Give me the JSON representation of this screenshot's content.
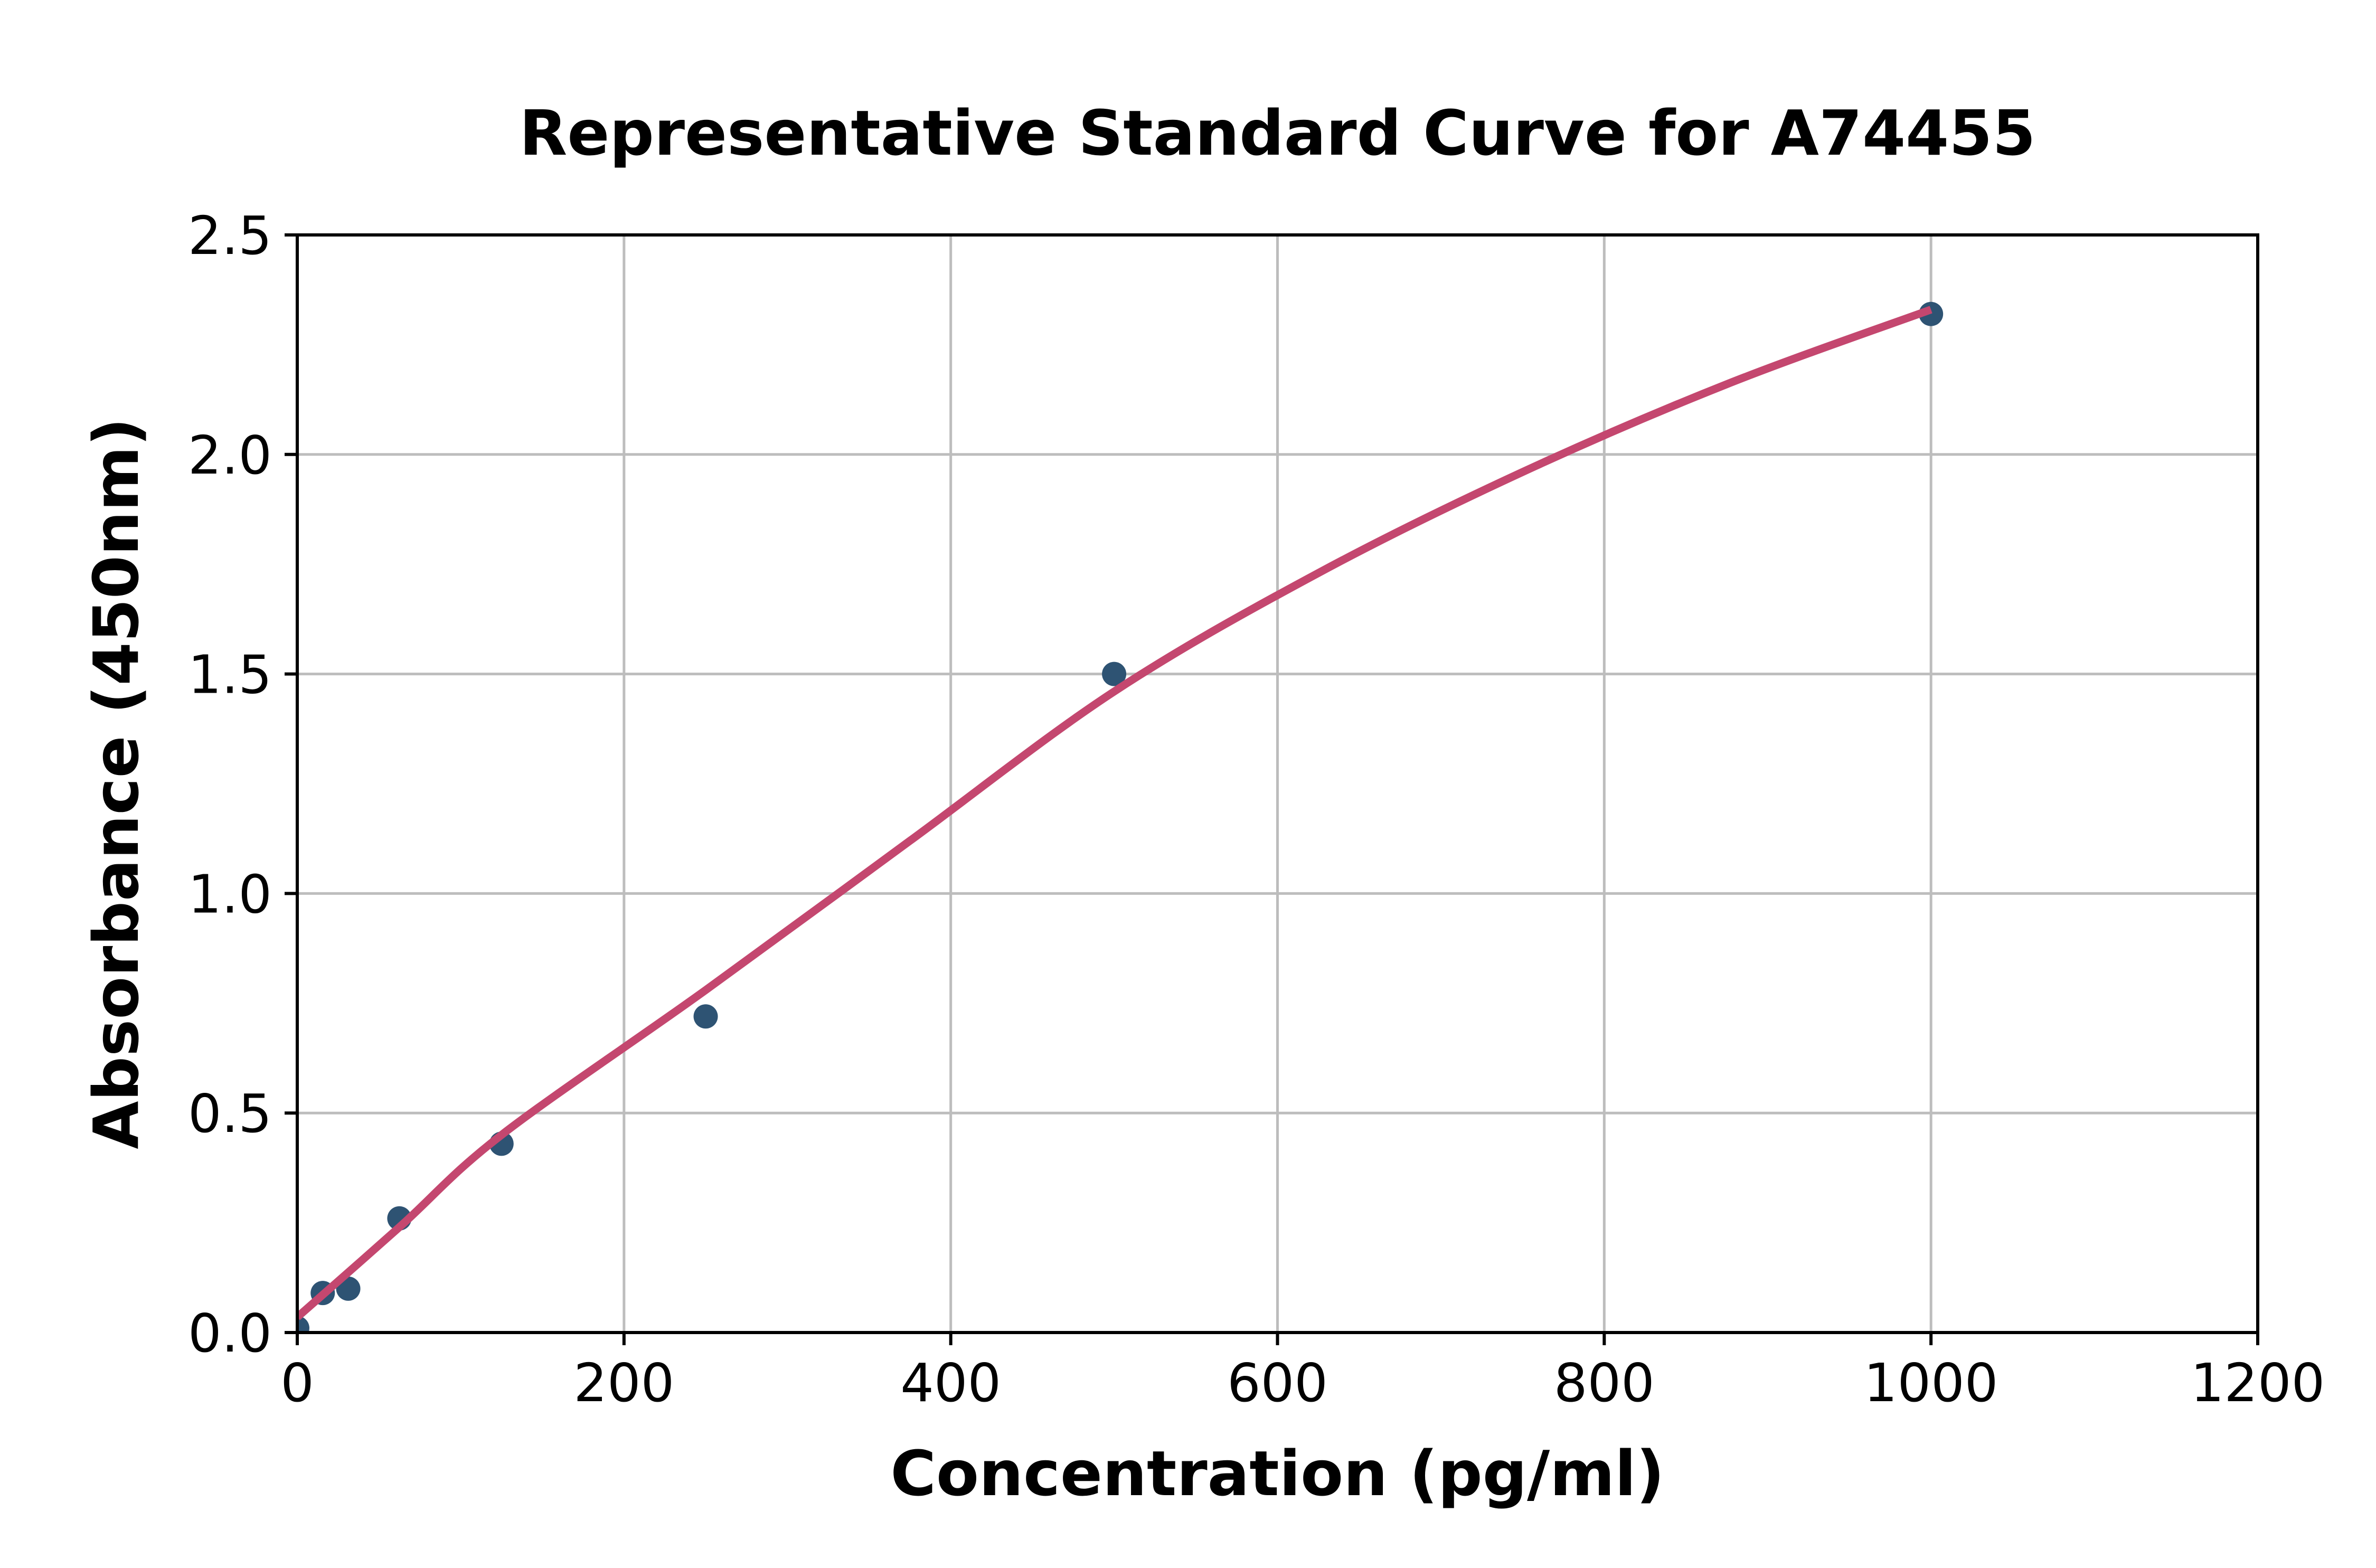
{
  "chart_data": {
    "type": "scatter",
    "title": "Representative Standard Curve for A74455",
    "xlabel": "Concentration (pg/ml)",
    "ylabel": "Absorbance (450nm)",
    "xlim": [
      0,
      1200
    ],
    "ylim": [
      0,
      2.5
    ],
    "x_ticks": [
      "0",
      "200",
      "400",
      "600",
      "800",
      "1000",
      "1200"
    ],
    "x_tick_values": [
      0,
      200,
      400,
      600,
      800,
      1000,
      1200
    ],
    "y_ticks": [
      "0.0",
      "0.5",
      "1.0",
      "1.5",
      "2.0",
      "2.5"
    ],
    "y_tick_values": [
      0,
      0.5,
      1.0,
      1.5,
      2.0,
      2.5
    ],
    "grid": true,
    "legend": "none",
    "series": [
      {
        "name": "standard-points",
        "kind": "scatter",
        "color": "#2E5373",
        "points": [
          [
            0,
            0.01
          ],
          [
            15.6,
            0.09
          ],
          [
            31.2,
            0.1
          ],
          [
            62.5,
            0.26
          ],
          [
            125,
            0.43
          ],
          [
            250,
            0.72
          ],
          [
            500,
            1.5
          ],
          [
            1000,
            2.32
          ]
        ]
      },
      {
        "name": "fitted-curve",
        "kind": "line",
        "color": "#C4476F",
        "points": [
          [
            0,
            0.035
          ],
          [
            62.5,
            0.24
          ],
          [
            125,
            0.45
          ],
          [
            250,
            0.78
          ],
          [
            375,
            1.12
          ],
          [
            500,
            1.46
          ],
          [
            625,
            1.73
          ],
          [
            750,
            1.96
          ],
          [
            875,
            2.16
          ],
          [
            1000,
            2.33
          ]
        ]
      }
    ],
    "styles": {
      "background": "#FFFFFF",
      "axis_color": "#000000",
      "grid_color": "#BDBDBD",
      "marker_color": "#2E5373",
      "curve_color": "#C4476F",
      "tick_label_color": "#000000"
    }
  }
}
